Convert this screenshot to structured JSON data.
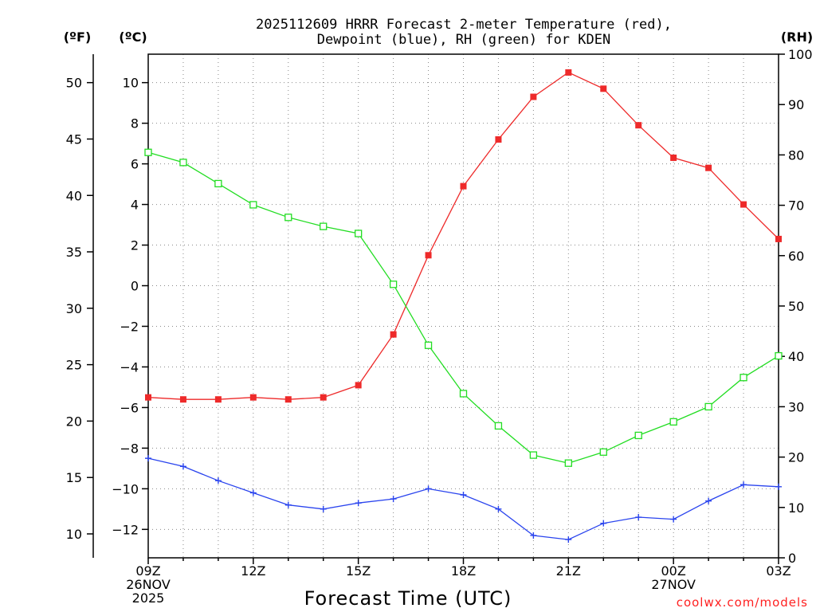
{
  "chart_data": {
    "type": "line",
    "title_line1": "2025112609 HRRR Forecast 2-meter Temperature (red),",
    "title_line2": "Dewpoint (blue), RH (green) for KDEN",
    "xlabel": "Forecast Time (UTC)",
    "credit": "coolwx.com/models",
    "x_hours": [
      0,
      1,
      2,
      3,
      4,
      5,
      6,
      7,
      8,
      9,
      10,
      11,
      12,
      13,
      14,
      15,
      16,
      17,
      18
    ],
    "x_ticks": [
      {
        "hour": 0,
        "lines": [
          "09Z",
          "26NOV",
          "2025"
        ]
      },
      {
        "hour": 3,
        "lines": [
          "12Z"
        ]
      },
      {
        "hour": 6,
        "lines": [
          "15Z"
        ]
      },
      {
        "hour": 9,
        "lines": [
          "18Z"
        ]
      },
      {
        "hour": 12,
        "lines": [
          "21Z"
        ]
      },
      {
        "hour": 15,
        "lines": [
          "00Z",
          "27NOV"
        ]
      },
      {
        "hour": 18,
        "lines": [
          "03Z"
        ]
      }
    ],
    "axes": {
      "celsius": {
        "unit_label": "(ºC)",
        "ylim": [
          -13.4,
          11.4
        ],
        "ticks": [
          -12,
          -10,
          -8,
          -6,
          -4,
          -2,
          0,
          2,
          4,
          6,
          8,
          10
        ]
      },
      "fahrenheit": {
        "unit_label": "(ºF)",
        "ticks": [
          10,
          15,
          20,
          25,
          30,
          35,
          40,
          45,
          50
        ]
      },
      "rh": {
        "unit_label": "(RH)",
        "ylim": [
          0,
          100
        ],
        "ticks": [
          0,
          10,
          20,
          30,
          40,
          50,
          60,
          70,
          80,
          90,
          100
        ]
      }
    },
    "series": [
      {
        "name": "2-meter Temperature",
        "axis": "celsius",
        "color": "#ee2a2a",
        "marker": "filled-square",
        "values": [
          -5.5,
          -5.6,
          -5.6,
          -5.5,
          -5.6,
          -5.5,
          -4.9,
          -2.4,
          1.5,
          4.9,
          7.2,
          9.3,
          10.5,
          9.7,
          7.9,
          6.3,
          5.8,
          4.0,
          2.3
        ]
      },
      {
        "name": "Dewpoint",
        "axis": "celsius",
        "color": "#2a44ee",
        "marker": "plus",
        "values": [
          -8.5,
          -8.9,
          -9.6,
          -10.2,
          -10.8,
          -11.0,
          -10.7,
          -10.5,
          -10.0,
          -10.3,
          -11.0,
          -12.3,
          -12.5,
          -11.7,
          -11.4,
          -11.5,
          -10.6,
          -9.8,
          -9.9
        ]
      },
      {
        "name": "RH",
        "axis": "rh",
        "color": "#22dd22",
        "marker": "open-square",
        "values": [
          80.5,
          78.5,
          74.3,
          70.1,
          67.6,
          65.8,
          64.4,
          54.3,
          42.2,
          32.6,
          26.2,
          20.4,
          18.8,
          21.0,
          24.3,
          27.0,
          30.0,
          35.8,
          40.1
        ]
      }
    ]
  }
}
